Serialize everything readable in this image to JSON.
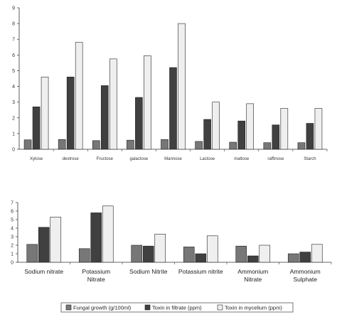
{
  "legend": {
    "items": [
      {
        "label": "Fungal growth (g/100ml)",
        "color": "#777777"
      },
      {
        "label": "Toxin in filtrate (ppm)",
        "color": "#404040"
      },
      {
        "label": "Toxin in mycelium (ppm)",
        "color": "#efefef"
      }
    ]
  },
  "chart_data": [
    {
      "type": "bar",
      "categories": [
        "Xylose",
        "dextrose",
        "Fructose",
        "galactose",
        "Mannose",
        "Lactose",
        "maltose",
        "raffinose",
        "Starch"
      ],
      "ylim": [
        0,
        9
      ],
      "yticks": [
        0,
        1,
        2,
        3,
        4,
        5,
        6,
        7,
        8,
        9
      ],
      "grid": false,
      "series": [
        {
          "name": "Fungal growth (g/100ml)",
          "color": "#777777",
          "values": [
            0.6,
            0.62,
            0.55,
            0.58,
            0.62,
            0.5,
            0.45,
            0.42,
            0.42
          ]
        },
        {
          "name": "Toxin in filtrate (ppm)",
          "color": "#404040",
          "values": [
            2.7,
            4.6,
            4.05,
            3.3,
            5.2,
            1.9,
            1.8,
            1.55,
            1.65
          ]
        },
        {
          "name": "Toxin in mycelium (ppm)",
          "color": "#efefef",
          "values": [
            4.6,
            6.8,
            5.75,
            5.95,
            8.0,
            3.0,
            2.9,
            2.6,
            2.6
          ]
        }
      ]
    },
    {
      "type": "bar",
      "categories": [
        [
          "Sodium nitrate"
        ],
        [
          "Potassium",
          "Nitrate"
        ],
        [
          "Sodium Nitrite"
        ],
        [
          "Potassium nitrite"
        ],
        [
          "Ammonium",
          "Nitrate"
        ],
        [
          "Ammonium",
          "Sulphate"
        ]
      ],
      "ylim": [
        0,
        7
      ],
      "yticks": [
        0,
        1,
        2,
        3,
        4,
        5,
        6,
        7
      ],
      "grid": false,
      "series": [
        {
          "name": "Fungal growth (g/100ml)",
          "color": "#777777",
          "values": [
            2.1,
            1.6,
            2.0,
            1.8,
            1.9,
            1.0
          ]
        },
        {
          "name": "Toxin in filtrate (ppm)",
          "color": "#404040",
          "values": [
            4.1,
            5.8,
            1.9,
            1.0,
            0.75,
            1.2
          ]
        },
        {
          "name": "Toxin in mycelium (ppm)",
          "color": "#efefef",
          "values": [
            5.3,
            6.6,
            3.3,
            3.1,
            2.0,
            2.1
          ]
        }
      ]
    }
  ]
}
